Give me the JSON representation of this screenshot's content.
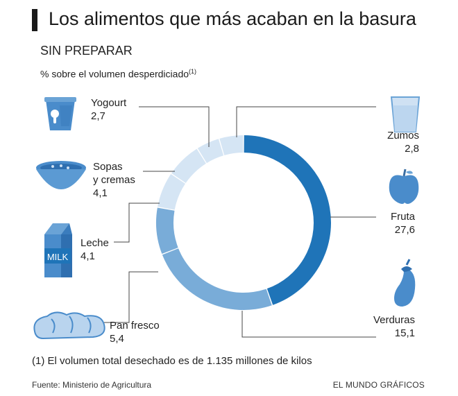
{
  "title": "Los alimentos que más acaban en la basura",
  "subtitle": "SIN PREPARAR",
  "unit_note": "% sobre el volumen desperdiciado",
  "unit_note_ref": "(1)",
  "footnote": "(1) El volumen total desechado es de 1.135 millones de kilos",
  "source": "Fuente: Ministerio de Agricultura",
  "credit": "EL MUNDO GRÁFICOS",
  "milk_carton_text": "MILK",
  "colors": {
    "dark": "#1f74b8",
    "medium": "#79acd8",
    "light": "#d5e5f4",
    "icon": "#4a8ccb"
  },
  "chart_data": {
    "type": "pie",
    "donut": true,
    "categories": [
      "Fruta",
      "Verduras",
      "Pan fresco",
      "Leche",
      "Sopas y cremas",
      "Yogourt",
      "Zumos"
    ],
    "values": [
      27.6,
      15.1,
      5.4,
      4.1,
      4.1,
      2.7,
      2.8
    ],
    "value_labels": [
      "27,6",
      "15,1",
      "5,4",
      "4,1",
      "4,1",
      "2,7",
      "2,8"
    ],
    "label_lines": [
      [
        "Fruta"
      ],
      [
        "Verduras"
      ],
      [
        "Pan fresco"
      ],
      [
        "Leche"
      ],
      [
        "Sopas",
        "y cremas"
      ],
      [
        "Yogourt"
      ],
      [
        "Zumos"
      ]
    ],
    "slice_colors": [
      "#1f74b8",
      "#79acd8",
      "#79acd8",
      "#d5e5f4",
      "#d5e5f4",
      "#d5e5f4",
      "#d5e5f4"
    ]
  }
}
